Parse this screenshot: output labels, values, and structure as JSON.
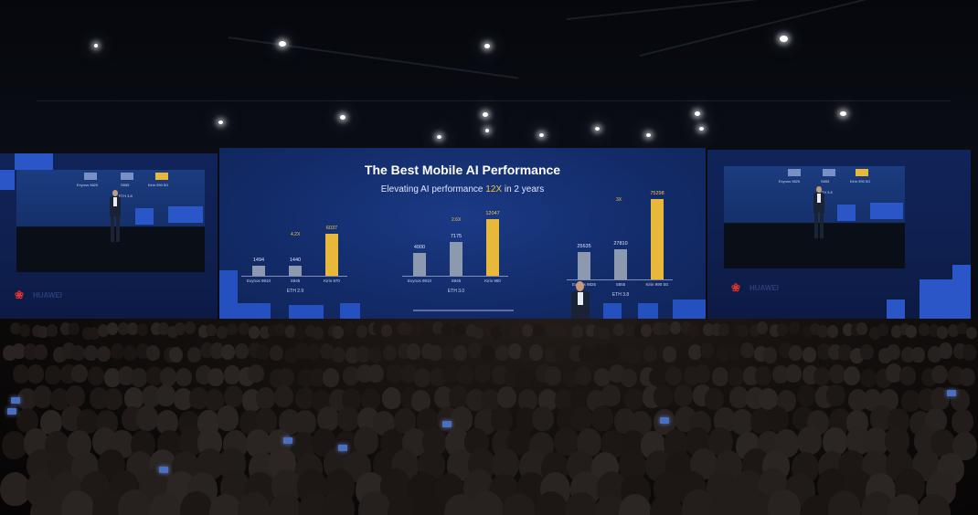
{
  "slide": {
    "title": "The Best Mobile AI Performance",
    "subtitle_prefix": "Elevating AI performance ",
    "subtitle_highlight": "12X",
    "subtitle_suffix": " in 2 years",
    "groups": [
      {
        "label": "ETH 2.9",
        "multiplier": "4.2X",
        "bars": [
          {
            "name": "Exynos 9810",
            "value_label": "1494",
            "value": 1494,
            "color": "gray"
          },
          {
            "name": "S845",
            "value_label": "1440",
            "value": 1440,
            "color": "gray"
          },
          {
            "name": "Kirin 970",
            "value_label": "6037",
            "value": 6037,
            "color": "gold"
          }
        ]
      },
      {
        "label": "ETH 3.0",
        "multiplier": "2.6X",
        "bars": [
          {
            "name": "Exynos 9810",
            "value_label": "4900",
            "value": 4900,
            "color": "gray"
          },
          {
            "name": "S845",
            "value_label": "7175",
            "value": 7175,
            "color": "gray"
          },
          {
            "name": "Kirin 980",
            "value_label": "12047",
            "value": 12047,
            "color": "gold"
          }
        ]
      },
      {
        "label": "ETH 3.8",
        "multiplier": "3X",
        "bars": [
          {
            "name": "Exynos 9825",
            "value_label": "25635",
            "value": 25635,
            "color": "gray"
          },
          {
            "name": "S855",
            "value_label": "27810",
            "value": 27810,
            "color": "gray"
          },
          {
            "name": "Kirin 990 5G",
            "value_label": "75298",
            "value": 75298,
            "color": "gold"
          }
        ]
      }
    ]
  },
  "side_screens": {
    "brand": "HUAWEI",
    "left_labels": [
      "Exynos 9825",
      "S855",
      "Kirin 990 5G"
    ],
    "left_group": "ETH 3.8",
    "right_labels": [
      "Exynos 9825",
      "S855",
      "Kirin 990 5G"
    ],
    "right_group": "ETH 3.8"
  },
  "colors": {
    "accent_gold": "#e8b83a",
    "bar_gray": "#8d99ae",
    "screen_blue": "#132c6a",
    "brand_red": "#e5322d"
  }
}
